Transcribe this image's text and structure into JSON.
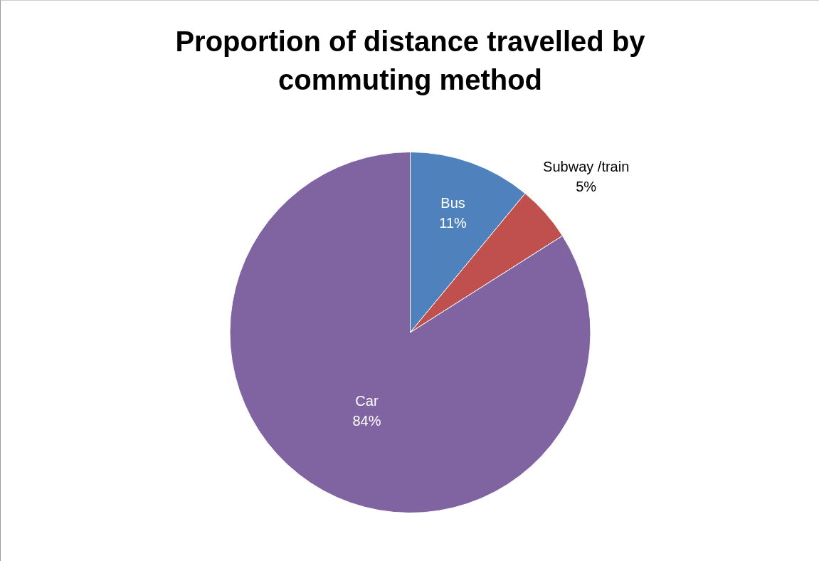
{
  "chart_data": {
    "type": "pie",
    "title": "Proportion of distance travelled by commuting method",
    "categories": [
      "Bus",
      "Subway /train",
      "Car"
    ],
    "values": [
      11,
      5,
      84
    ],
    "colors": [
      "#4f81bd",
      "#c0504d",
      "#8064a2"
    ],
    "value_labels": [
      "11%",
      "5%",
      "84%"
    ],
    "legend": false
  }
}
